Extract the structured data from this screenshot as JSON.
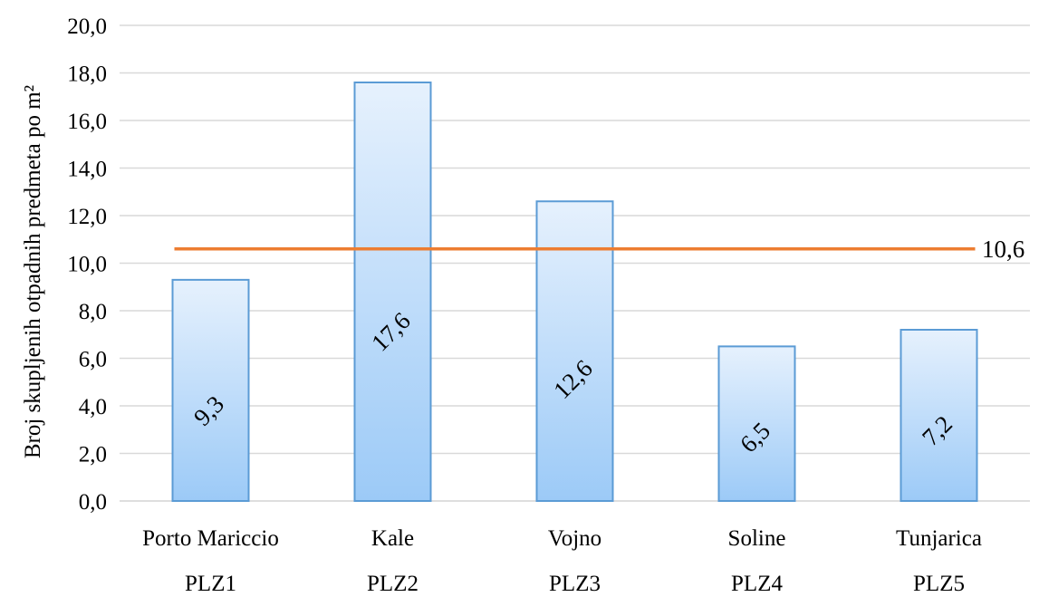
{
  "chart_data": {
    "type": "bar",
    "title": "",
    "ylabel": "Broj skupljenih otpadnih predmeta po m²",
    "xlabel": "",
    "ylim": [
      0,
      20
    ],
    "y_ticks": [
      "0,0",
      "2,0",
      "4,0",
      "6,0",
      "8,0",
      "10,0",
      "12,0",
      "14,0",
      "16,0",
      "18,0",
      "20,0"
    ],
    "grid": true,
    "categories": [
      "Porto Mariccio",
      "Kale",
      "Vojno",
      "Soline",
      "Tunjarica"
    ],
    "category_codes": [
      "PLZ1",
      "PLZ2",
      "PLZ3",
      "PLZ4",
      "PLZ5"
    ],
    "values": [
      9.3,
      17.6,
      12.6,
      6.5,
      7.2
    ],
    "value_labels": [
      "9,3",
      "17,6",
      "12,6",
      "6,5",
      "7,2"
    ],
    "reference_line": {
      "value": 10.6,
      "label": "10,6"
    },
    "colors": {
      "bar_top": "#e6f1fd",
      "bar_bottom": "#9ccaf7",
      "bar_border": "#5b9bd5",
      "reference_line": "#ed7d31",
      "gridline": "#d9d9d9"
    }
  }
}
